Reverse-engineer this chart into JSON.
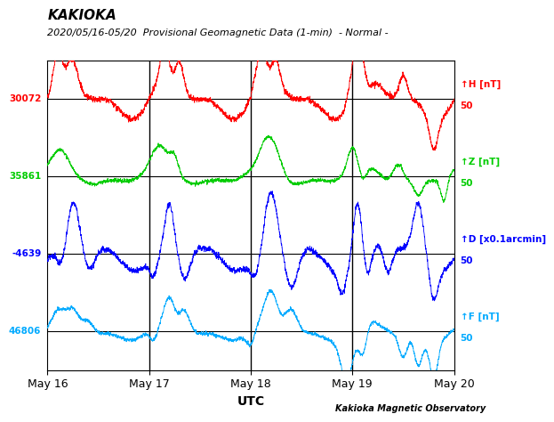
{
  "title_line1": "KAKIOKA",
  "title_line2": "2020/05/16-05/20  Provisional Geomagnetic Data (1-min)  - Normal -",
  "xlabel": "UTC",
  "footer": "Kakioka Magnetic Observatory",
  "y_labels_left": [
    "30072",
    "35861",
    "-4639",
    "46806"
  ],
  "y_labels_right_names": [
    "H [nT]",
    "Z [nT]",
    "D [x0.1arcmin]",
    "F [nT]"
  ],
  "channel_colors": [
    "#ff0000",
    "#00cc00",
    "#0000ff",
    "#00aaff"
  ],
  "x_ticks": [
    "May 16",
    "May 17",
    "May 18",
    "May 19",
    "May 20"
  ],
  "background_color": "#ffffff",
  "channel_centers": [
    700,
    500,
    300,
    100
  ]
}
